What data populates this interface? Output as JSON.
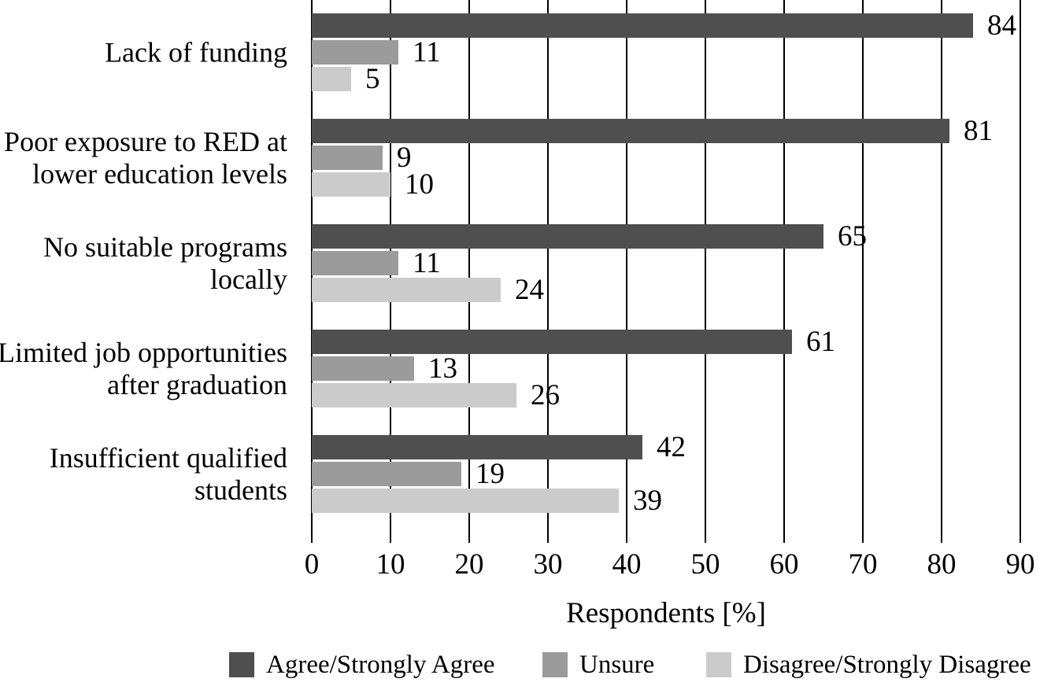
{
  "chart_data": {
    "type": "bar",
    "orientation": "horizontal",
    "title": "",
    "xlabel": "Respondents [%]",
    "ylabel": "",
    "xlim": [
      0,
      90
    ],
    "xticks": [
      0,
      10,
      20,
      30,
      40,
      50,
      60,
      70,
      80,
      90
    ],
    "grid": true,
    "data_labels": true,
    "legend_position": "bottom",
    "categories": [
      "Lack of funding",
      "Poor exposure to RED at lower education levels",
      "No suitable programs locally",
      "Limited job opportunities after graduation",
      "Insufficient qualified students"
    ],
    "category_label_lines": [
      [
        "Lack of funding"
      ],
      [
        "Poor exposure to RED at",
        "lower education levels"
      ],
      [
        "No suitable programs",
        "locally"
      ],
      [
        "Limited job opportunities",
        "after graduation"
      ],
      [
        "Insufficient qualified",
        "students"
      ]
    ],
    "series": [
      {
        "name": "Agree/Strongly Agree",
        "color": "#4f4f4f",
        "values": [
          84,
          81,
          65,
          61,
          42
        ]
      },
      {
        "name": "Unsure",
        "color": "#9b9b9b",
        "values": [
          11,
          9,
          11,
          13,
          19
        ]
      },
      {
        "name": "Disagree/Strongly Disagree",
        "color": "#cbcbcb",
        "values": [
          5,
          10,
          24,
          26,
          39
        ]
      }
    ]
  },
  "colors": {
    "background": "#ffffff",
    "grid": "#000000",
    "text": "#000000"
  }
}
